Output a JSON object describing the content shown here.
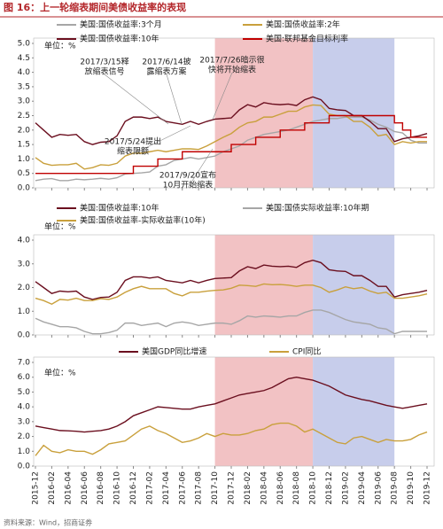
{
  "title": "图 16：上一轮缩表期间美债收益率的表现",
  "source": "资料来源：Wind，招商证券",
  "chart_data": [
    {
      "type": "line",
      "unit": "单位：%",
      "categories": [
        "2015-12",
        null,
        "2016-02",
        null,
        "2016-04",
        null,
        "2016-06",
        null,
        "2016-08",
        null,
        "2016-10",
        null,
        "2016-12",
        null,
        "2017-02",
        null,
        "2017-04",
        null,
        "2017-06",
        null,
        "2017-08",
        null,
        "2017-10",
        null,
        "2017-12",
        null,
        "2018-02",
        null,
        "2018-04",
        null,
        "2018-06",
        null,
        "2018-08",
        null,
        "2018-10",
        null,
        "2018-12",
        null,
        "2019-02",
        null,
        "2019-04",
        null,
        "2019-06",
        null,
        "2019-08",
        null,
        "2019-10",
        null,
        "2019-12"
      ],
      "ylim": [
        0,
        5
      ],
      "yticks": [
        {
          "value": 0,
          "label": "0.0"
        },
        0.5,
        {
          "value": 1,
          "label": "1.0"
        },
        1.5,
        {
          "value": 2,
          "label": "2.0"
        },
        2.5,
        {
          "value": 3,
          "label": "3.0"
        },
        3.5,
        {
          "value": 4,
          "label": "4.0"
        },
        4.5,
        {
          "value": 5,
          "label": "5.0"
        }
      ],
      "shade": [
        {
          "start": "2017-10",
          "end": "2018-10",
          "color": "#f2c2c4"
        },
        {
          "start": "2018-10",
          "end": "2019-08",
          "color": "#c7cdeb"
        }
      ],
      "series": [
        {
          "name": "美国:国债收益率:3个月",
          "color": "#a6a6a6",
          "values": [
            0.25,
            0.3,
            0.32,
            0.25,
            0.25,
            0.3,
            0.28,
            0.3,
            0.33,
            0.3,
            0.35,
            0.48,
            0.5,
            0.52,
            0.55,
            0.75,
            0.8,
            0.95,
            1.0,
            1.05,
            1.0,
            1.05,
            1.1,
            1.25,
            1.35,
            1.45,
            1.65,
            1.75,
            1.85,
            1.9,
            1.95,
            2.0,
            2.1,
            2.2,
            2.3,
            2.35,
            2.4,
            2.4,
            2.45,
            2.45,
            2.45,
            2.35,
            2.2,
            2.1,
            1.95,
            1.9,
            1.65,
            1.55,
            1.55
          ]
        },
        {
          "name": "美国:国债收益率:2年",
          "color": "#c9a03c",
          "values": [
            1.05,
            0.85,
            0.78,
            0.8,
            0.8,
            0.85,
            0.65,
            0.7,
            0.8,
            0.78,
            0.85,
            1.1,
            1.2,
            1.2,
            1.25,
            1.3,
            1.25,
            1.3,
            1.35,
            1.35,
            1.33,
            1.45,
            1.6,
            1.75,
            1.88,
            2.1,
            2.25,
            2.3,
            2.45,
            2.45,
            2.55,
            2.65,
            2.65,
            2.8,
            2.87,
            2.85,
            2.55,
            2.5,
            2.5,
            2.3,
            2.3,
            2.1,
            1.8,
            1.85,
            1.5,
            1.6,
            1.55,
            1.6,
            1.6
          ]
        },
        {
          "name": "美国:国债收益率:10年",
          "color": "#6b0f1f",
          "values": [
            2.25,
            2.0,
            1.75,
            1.85,
            1.82,
            1.85,
            1.6,
            1.5,
            1.58,
            1.6,
            1.8,
            2.3,
            2.45,
            2.45,
            2.4,
            2.45,
            2.3,
            2.25,
            2.2,
            2.3,
            2.2,
            2.3,
            2.38,
            2.4,
            2.42,
            2.7,
            2.88,
            2.8,
            2.95,
            2.9,
            2.88,
            2.9,
            2.85,
            3.05,
            3.15,
            3.05,
            2.75,
            2.7,
            2.68,
            2.5,
            2.5,
            2.3,
            2.05,
            2.05,
            1.6,
            1.7,
            1.75,
            1.8,
            1.88
          ]
        },
        {
          "name": "美国:联邦基金目标利率",
          "color": "#c00000",
          "step": true,
          "values": [
            0.5,
            0.5,
            0.5,
            0.5,
            0.5,
            0.5,
            0.5,
            0.5,
            0.5,
            0.5,
            0.5,
            0.5,
            0.75,
            0.75,
            0.75,
            1.0,
            1.0,
            1.0,
            1.25,
            1.25,
            1.25,
            1.25,
            1.25,
            1.25,
            1.5,
            1.5,
            1.5,
            1.75,
            1.75,
            1.75,
            2.0,
            2.0,
            2.0,
            2.25,
            2.25,
            2.25,
            2.5,
            2.5,
            2.5,
            2.5,
            2.5,
            2.5,
            2.5,
            2.5,
            2.25,
            2.0,
            1.75,
            1.75,
            1.75
          ]
        }
      ],
      "annotations": [
        [
          "2017/3/15释",
          "放缩表信号"
        ],
        [
          "2017/6/14披",
          "露缩表方案"
        ],
        [
          "2017/7/26暗示很",
          "快将开始缩表"
        ],
        [
          "2017/5/24提出",
          "缩表限额"
        ],
        [
          "2017/9/20宣布",
          "10月开始缩表"
        ]
      ]
    },
    {
      "type": "line",
      "unit": "单位：%",
      "categories": [
        "2015-12",
        null,
        "2016-02",
        null,
        "2016-04",
        null,
        "2016-06",
        null,
        "2016-08",
        null,
        "2016-10",
        null,
        "2016-12",
        null,
        "2017-02",
        null,
        "2017-04",
        null,
        "2017-06",
        null,
        "2017-08",
        null,
        "2017-10",
        null,
        "2017-12",
        null,
        "2018-02",
        null,
        "2018-04",
        null,
        "2018-06",
        null,
        "2018-08",
        null,
        "2018-10",
        null,
        "2018-12",
        null,
        "2019-02",
        null,
        "2019-04",
        null,
        "2019-06",
        null,
        "2019-08",
        null,
        "2019-10",
        null,
        "2019-12"
      ],
      "ylim": [
        0,
        4
      ],
      "yticks": [
        {
          "value": 0,
          "label": "0.0"
        },
        {
          "value": 1,
          "label": "1.0"
        },
        {
          "value": 2,
          "label": "2.0"
        },
        {
          "value": 3,
          "label": "3.0"
        },
        {
          "value": 4,
          "label": "4.0"
        }
      ],
      "shade": [
        {
          "start": "2017-10",
          "end": "2018-10",
          "color": "#f2c2c4"
        },
        {
          "start": "2018-10",
          "end": "2019-08",
          "color": "#c7cdeb"
        }
      ],
      "series": [
        {
          "name": "美国:国债收益率:10年",
          "color": "#6b0f1f",
          "values": [
            2.25,
            2.0,
            1.75,
            1.85,
            1.82,
            1.85,
            1.6,
            1.5,
            1.58,
            1.6,
            1.8,
            2.3,
            2.45,
            2.45,
            2.4,
            2.45,
            2.3,
            2.25,
            2.2,
            2.3,
            2.2,
            2.3,
            2.38,
            2.4,
            2.42,
            2.7,
            2.88,
            2.8,
            2.95,
            2.9,
            2.88,
            2.9,
            2.85,
            3.05,
            3.15,
            3.05,
            2.75,
            2.7,
            2.68,
            2.5,
            2.5,
            2.3,
            2.05,
            2.05,
            1.6,
            1.7,
            1.75,
            1.8,
            1.88
          ]
        },
        {
          "name": "美国:国债实际收益率:10年期",
          "color": "#a6a6a6",
          "values": [
            0.7,
            0.55,
            0.45,
            0.35,
            0.35,
            0.3,
            0.15,
            0.05,
            0.05,
            0.1,
            0.2,
            0.5,
            0.5,
            0.4,
            0.45,
            0.5,
            0.35,
            0.5,
            0.55,
            0.5,
            0.4,
            0.45,
            0.5,
            0.5,
            0.45,
            0.6,
            0.8,
            0.75,
            0.8,
            0.78,
            0.75,
            0.8,
            0.8,
            0.95,
            1.05,
            1.05,
            0.95,
            0.8,
            0.65,
            0.55,
            0.5,
            0.45,
            0.3,
            0.25,
            0.05,
            0.15,
            0.15,
            0.15,
            0.15
          ]
        },
        {
          "name": "美国:国债收益率-实际收益率(10年)",
          "color": "#c9a03c",
          "values": [
            1.55,
            1.45,
            1.3,
            1.5,
            1.47,
            1.55,
            1.45,
            1.45,
            1.53,
            1.5,
            1.6,
            1.8,
            1.95,
            2.05,
            1.95,
            1.95,
            1.95,
            1.75,
            1.65,
            1.8,
            1.8,
            1.85,
            1.88,
            1.9,
            1.97,
            2.1,
            2.08,
            2.05,
            2.15,
            2.12,
            2.13,
            2.1,
            2.05,
            2.1,
            2.1,
            2.0,
            1.8,
            1.9,
            2.03,
            1.95,
            2.0,
            1.85,
            1.75,
            1.8,
            1.55,
            1.55,
            1.6,
            1.65,
            1.73
          ]
        }
      ]
    },
    {
      "type": "line",
      "unit": "单位：%",
      "categories": [
        "2015-12",
        null,
        "2016-02",
        null,
        "2016-04",
        null,
        "2016-06",
        null,
        "2016-08",
        null,
        "2016-10",
        null,
        "2016-12",
        null,
        "2017-02",
        null,
        "2017-04",
        null,
        "2017-06",
        null,
        "2017-08",
        null,
        "2017-10",
        null,
        "2017-12",
        null,
        "2018-02",
        null,
        "2018-04",
        null,
        "2018-06",
        null,
        "2018-08",
        null,
        "2018-10",
        null,
        "2018-12",
        null,
        "2019-02",
        null,
        "2019-04",
        null,
        "2019-06",
        null,
        "2019-08",
        null,
        "2019-10",
        null,
        "2019-12"
      ],
      "ylim": [
        0,
        7
      ],
      "yticks": [
        {
          "value": 0,
          "label": "0.0"
        },
        {
          "value": 1,
          "label": "1.0"
        },
        {
          "value": 2,
          "label": "2.0"
        },
        {
          "value": 3,
          "label": "3.0"
        },
        {
          "value": 4,
          "label": "4.0"
        },
        {
          "value": 5,
          "label": "5.0"
        },
        {
          "value": 6,
          "label": "6.0"
        },
        {
          "value": 7,
          "label": "7.0"
        }
      ],
      "shade": [
        {
          "start": "2017-10",
          "end": "2018-10",
          "color": "#f2c2c4"
        },
        {
          "start": "2018-10",
          "end": "2019-08",
          "color": "#c7cdeb"
        }
      ],
      "series": [
        {
          "name": "美国GDP同比增速",
          "color": "#6b0f1f",
          "values": [
            2.7,
            2.6,
            2.5,
            2.4,
            2.38,
            2.35,
            2.3,
            2.35,
            2.4,
            2.5,
            2.7,
            3.0,
            3.4,
            3.6,
            3.8,
            4.0,
            3.95,
            3.9,
            3.85,
            3.85,
            4.0,
            4.1,
            4.2,
            4.4,
            4.6,
            4.8,
            4.9,
            5.0,
            5.1,
            5.3,
            5.6,
            5.9,
            6.0,
            5.9,
            5.8,
            5.6,
            5.4,
            5.1,
            4.8,
            4.65,
            4.5,
            4.4,
            4.25,
            4.1,
            4.0,
            3.9,
            4.0,
            4.1,
            4.2
          ]
        },
        {
          "name": "CPI同比",
          "color": "#c9a03c",
          "values": [
            0.7,
            1.4,
            1.0,
            0.9,
            1.1,
            1.0,
            1.0,
            0.8,
            1.1,
            1.5,
            1.6,
            1.7,
            2.1,
            2.5,
            2.7,
            2.4,
            2.2,
            1.9,
            1.6,
            1.7,
            1.9,
            2.2,
            2.0,
            2.2,
            2.1,
            2.1,
            2.2,
            2.4,
            2.5,
            2.8,
            2.9,
            2.9,
            2.7,
            2.3,
            2.5,
            2.2,
            1.9,
            1.6,
            1.5,
            1.9,
            2.0,
            1.8,
            1.6,
            1.8,
            1.7,
            1.7,
            1.8,
            2.1,
            2.3
          ]
        }
      ]
    }
  ]
}
